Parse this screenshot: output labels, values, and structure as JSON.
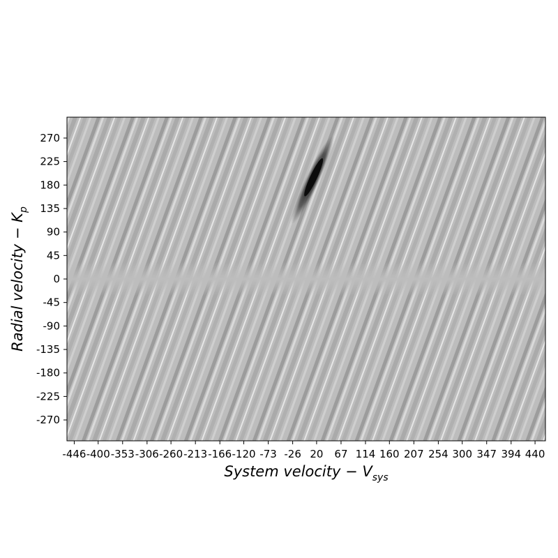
{
  "chart_data": {
    "type": "heatmap",
    "colormap": "grayscale",
    "xlabel": {
      "main": "System velocity − V",
      "sub": "sys"
    },
    "ylabel": {
      "main": "Radial velocity − K",
      "sub": "p"
    },
    "xlim": [
      -460,
      460
    ],
    "ylim": [
      -310,
      310
    ],
    "x_ticks": [
      -446,
      -400,
      -353,
      -306,
      -260,
      -213,
      -166,
      -120,
      -73,
      -26,
      20,
      67,
      114,
      160,
      207,
      254,
      300,
      347,
      394,
      440
    ],
    "y_ticks": [
      270,
      225,
      180,
      135,
      90,
      45,
      0,
      -45,
      -90,
      -135,
      -180,
      -225,
      -270
    ],
    "features": [
      {
        "kind": "peak",
        "x": 12,
        "y": 190,
        "shade": "dark"
      },
      {
        "kind": "diagonal-stripes",
        "direction": "up-right",
        "shade": "alternating"
      },
      {
        "kind": "flat-band",
        "y": 0,
        "shade": "neutral-gray"
      }
    ],
    "grid": false,
    "legend": "none"
  }
}
